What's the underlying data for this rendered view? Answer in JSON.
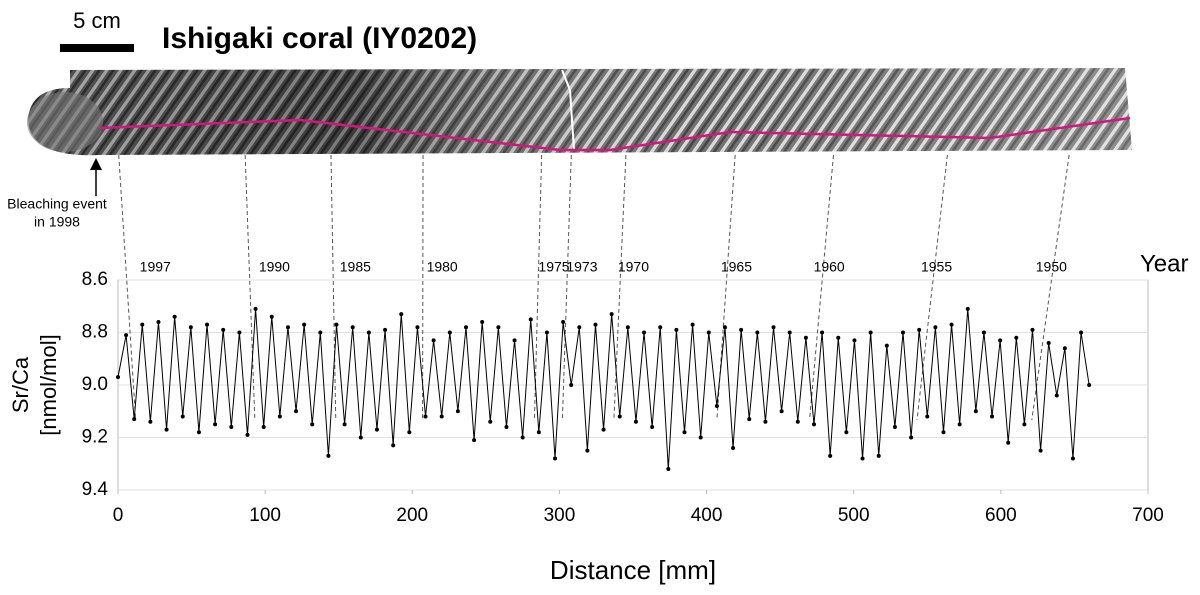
{
  "chart_data": {
    "type": "line",
    "title": "Ishigaki coral (IY0202)",
    "scale_label": "5 cm",
    "annotation": [
      "Bleaching event",
      "in 1998"
    ],
    "year_axis_label": "Year",
    "xlabel": "Distance [mm]",
    "ylabel": [
      "Sr/Ca",
      "[nmol/mol]"
    ],
    "xlim": [
      0,
      700
    ],
    "xticks": [
      0,
      100,
      200,
      300,
      400,
      500,
      600,
      700
    ],
    "ylim": [
      8.6,
      9.4
    ],
    "y_inverted": true,
    "yticks": [
      8.6,
      8.8,
      {
        "value": 9,
        "label": "9.0"
      },
      9.2,
      9.4
    ],
    "grid": true,
    "color": "#000000",
    "year_markers": [
      {
        "label": "1997",
        "x": 12
      },
      {
        "label": "1990",
        "x": 93
      },
      {
        "label": "1985",
        "x": 148
      },
      {
        "label": "1980",
        "x": 207
      },
      {
        "label": "1975",
        "x": 283
      },
      {
        "label": "1973",
        "x": 302
      },
      {
        "label": "1970",
        "x": 337
      },
      {
        "label": "1965",
        "x": 407
      },
      {
        "label": "1960",
        "x": 470
      },
      {
        "label": "1955",
        "x": 543
      },
      {
        "label": "1950",
        "x": 621
      }
    ],
    "x": [
      0,
      5.5,
      11,
      16.5,
      22,
      27.5,
      33,
      38.5,
      44,
      49.5,
      55,
      60.5,
      66,
      71.5,
      77,
      82.5,
      88,
      93.5,
      99,
      104.5,
      110,
      115.5,
      121,
      126.5,
      132,
      137.5,
      143,
      148.5,
      154,
      159.5,
      165,
      170.5,
      176,
      181.5,
      187,
      192.5,
      198,
      203.5,
      209,
      214.5,
      220,
      225.5,
      231,
      236.5,
      242,
      247.5,
      253,
      258.5,
      264,
      269.5,
      275,
      280.5,
      286,
      291.5,
      297,
      302.5,
      308,
      313.5,
      319,
      324.5,
      330,
      335.5,
      341,
      346.5,
      352,
      357.5,
      363,
      368.5,
      374,
      379.5,
      385,
      390.5,
      396,
      401.5,
      407,
      412.5,
      418,
      423.5,
      429,
      434.5,
      440,
      445.5,
      451,
      456.5,
      462,
      467.5,
      473,
      478.5,
      484,
      489.5,
      495,
      500.5,
      506,
      511.5,
      517,
      522.5,
      528,
      533.5,
      539,
      544.5,
      550,
      555.5,
      561,
      566.5,
      572,
      577.5,
      583,
      588.5,
      594,
      599.5,
      605,
      610.5,
      616,
      621.5,
      627,
      632.5,
      638,
      643.5,
      649,
      654.5,
      660
    ],
    "values": [
      8.97,
      8.81,
      9.13,
      8.77,
      9.14,
      8.76,
      9.17,
      8.74,
      9.12,
      8.78,
      9.18,
      8.77,
      9.15,
      8.79,
      9.16,
      8.8,
      9.19,
      8.71,
      9.16,
      8.74,
      9.12,
      8.78,
      9.1,
      8.77,
      9.15,
      8.8,
      9.27,
      8.77,
      9.15,
      8.78,
      9.2,
      8.8,
      9.17,
      8.79,
      9.23,
      8.73,
      9.18,
      8.78,
      9.12,
      8.83,
      9.12,
      8.8,
      9.1,
      8.78,
      9.21,
      8.76,
      9.14,
      8.78,
      9.16,
      8.83,
      9.2,
      8.75,
      9.18,
      8.8,
      9.28,
      8.76,
      9.0,
      8.78,
      9.25,
      8.77,
      9.17,
      8.73,
      9.12,
      8.78,
      9.14,
      8.8,
      9.16,
      8.78,
      9.32,
      8.79,
      9.18,
      8.77,
      9.2,
      8.8,
      9.08,
      8.78,
      9.24,
      8.79,
      9.13,
      8.8,
      9.14,
      8.78,
      9.1,
      8.8,
      9.14,
      8.82,
      9.15,
      8.8,
      9.27,
      8.82,
      9.18,
      8.83,
      9.28,
      8.8,
      9.27,
      8.85,
      9.16,
      8.8,
      9.2,
      8.79,
      9.12,
      8.78,
      9.18,
      8.77,
      9.15,
      8.71,
      9.1,
      8.8,
      9.12,
      8.83,
      9.22,
      8.82,
      9.15,
      8.79,
      9.25,
      8.84,
      9.04,
      8.86,
      9.28,
      8.8,
      9.0
    ]
  }
}
